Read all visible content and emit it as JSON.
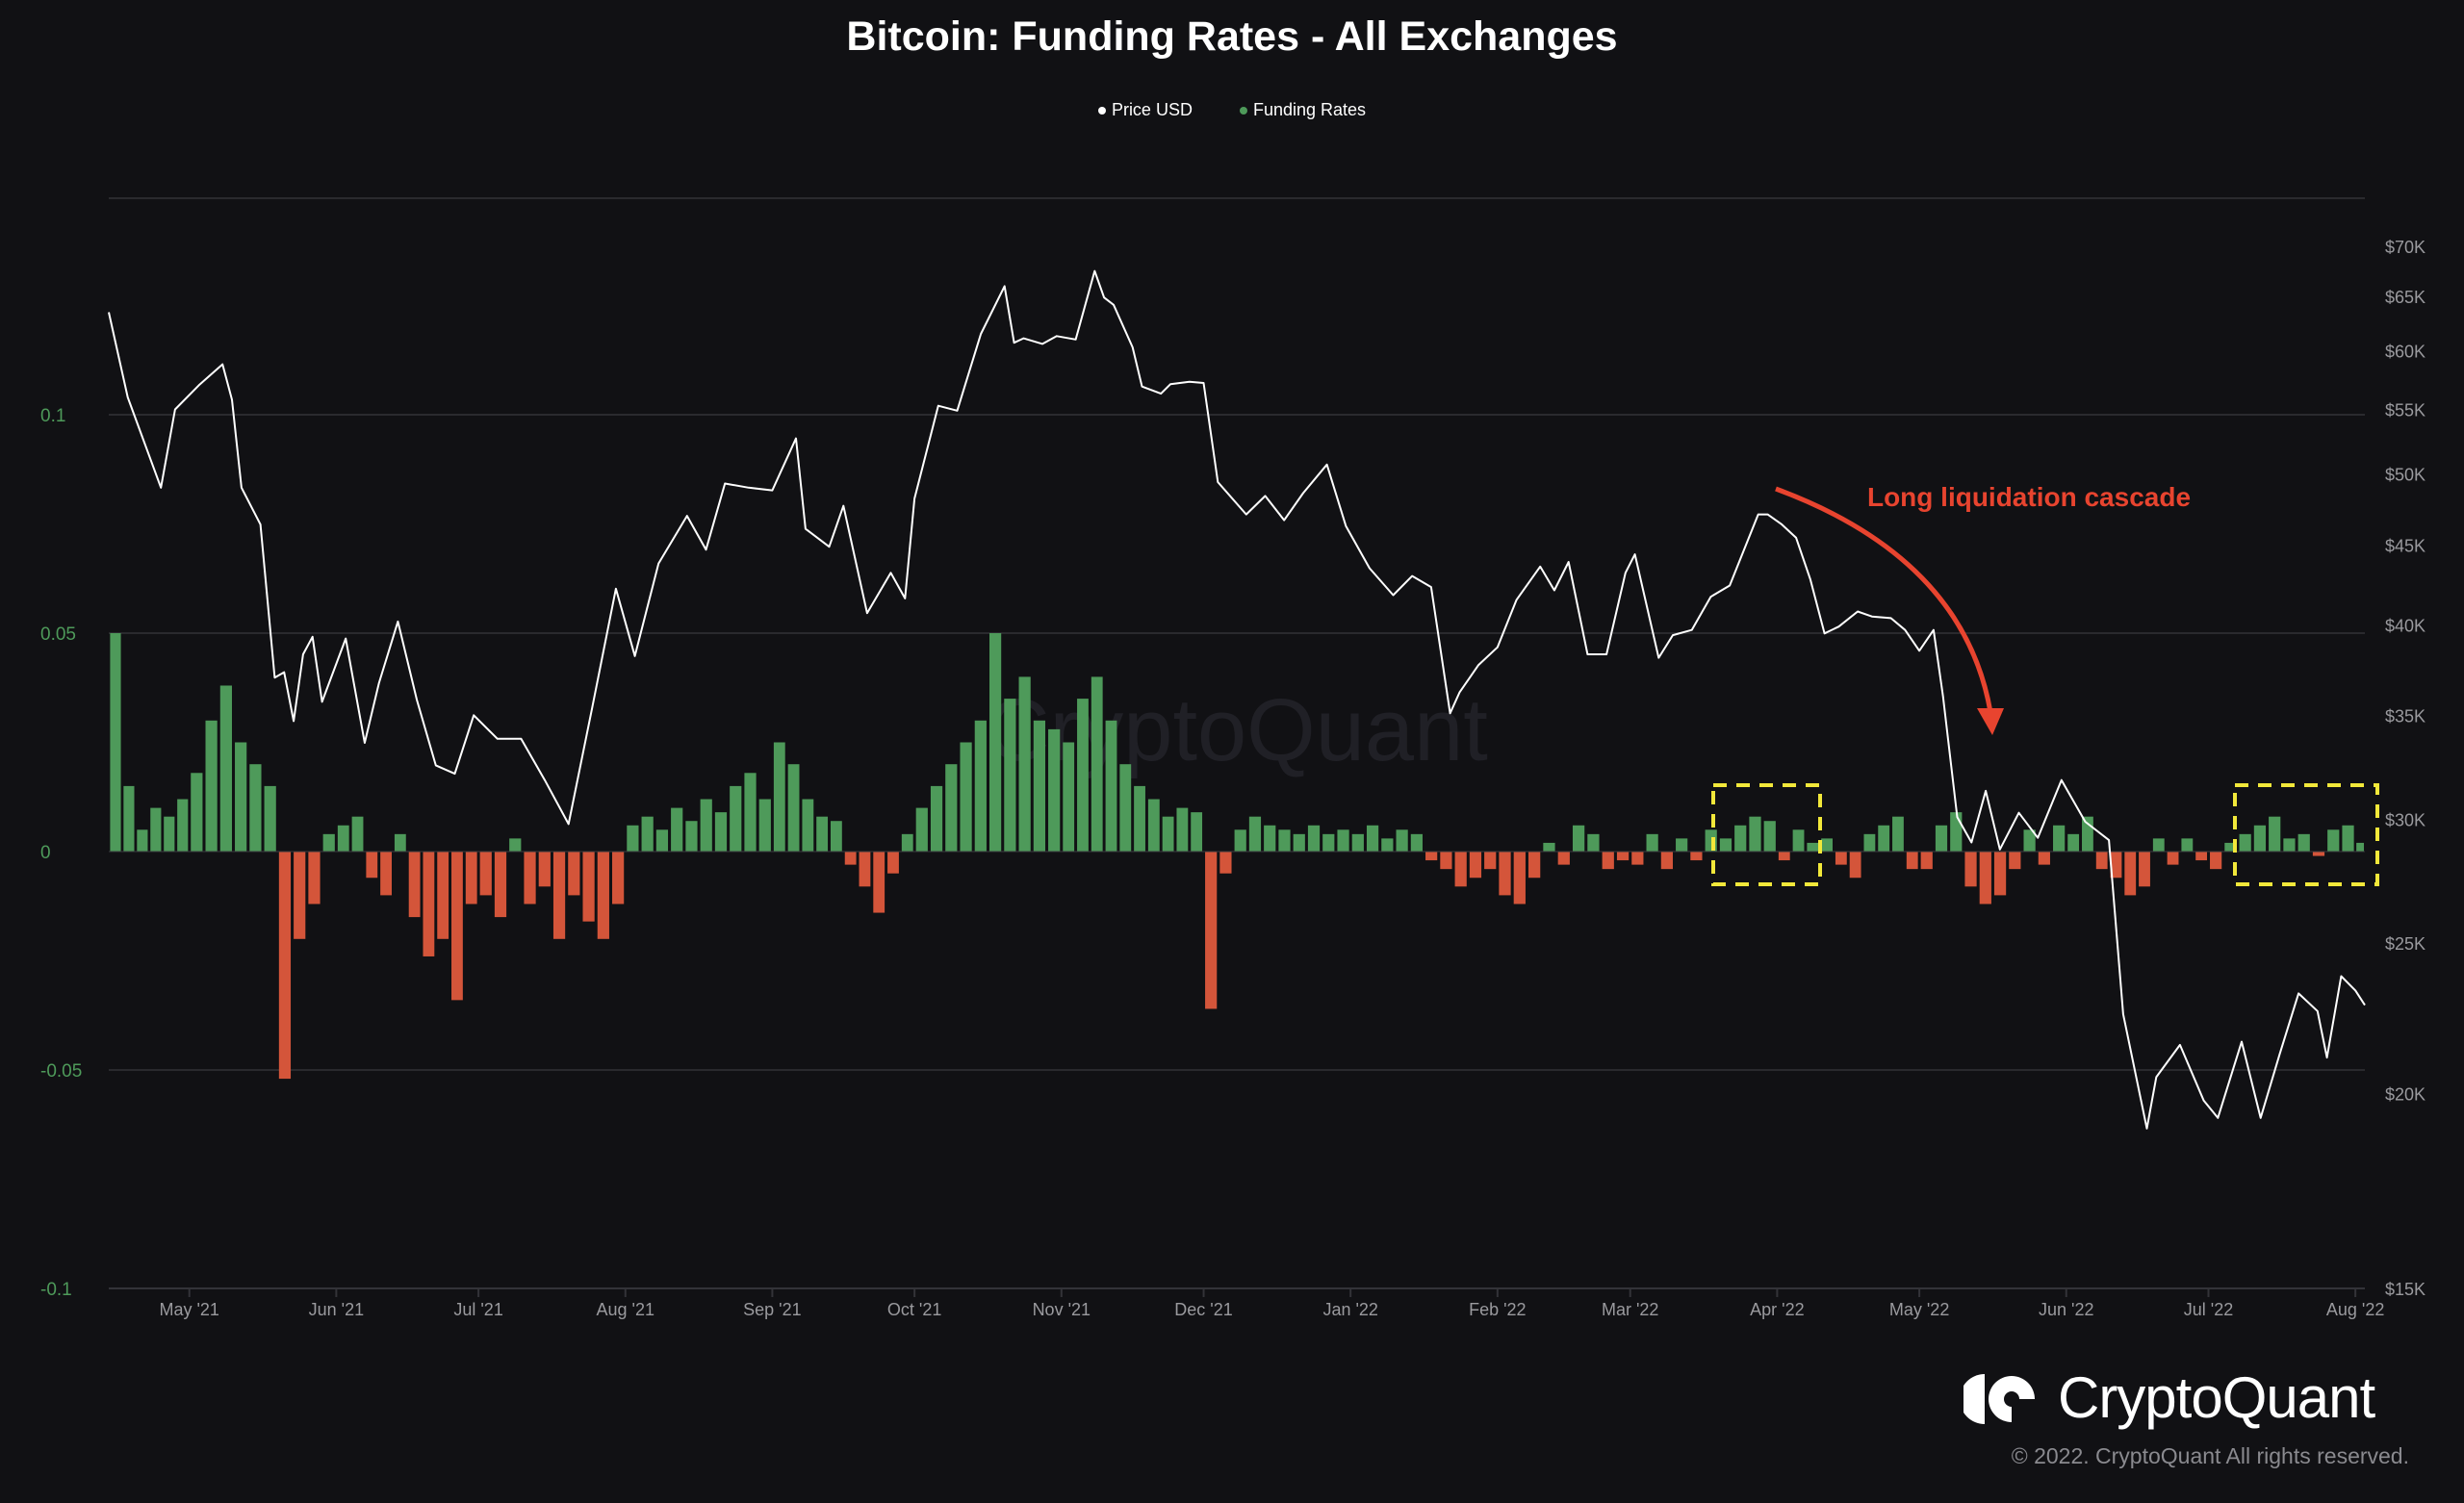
{
  "title": "Bitcoin: Funding Rates - All Exchanges",
  "legend": [
    {
      "label": "Price USD",
      "color": "#ffffff"
    },
    {
      "label": "Funding Rates",
      "color": "#4e9a5a"
    }
  ],
  "watermark": "CryptoQuant",
  "brand": {
    "name": "CryptoQuant",
    "copyright": "© 2022. CryptoQuant All rights reserved."
  },
  "annotation": {
    "text": "Long liquidation cascade",
    "color": "#e8442f",
    "highlight_color": "#f2e83a"
  },
  "chart_data": {
    "type": "bar+line",
    "title": "Bitcoin: Funding Rates - All Exchanges",
    "x_range": [
      "2021-04-14",
      "2022-08-03"
    ],
    "x_ticks": [
      {
        "date": "2021-05-01",
        "label": "May '21"
      },
      {
        "date": "2021-06-01",
        "label": "Jun '21"
      },
      {
        "date": "2021-07-01",
        "label": "Jul '21"
      },
      {
        "date": "2021-08-01",
        "label": "Aug '21"
      },
      {
        "date": "2021-09-01",
        "label": "Sep '21"
      },
      {
        "date": "2021-10-01",
        "label": "Oct '21"
      },
      {
        "date": "2021-11-01",
        "label": "Nov '21"
      },
      {
        "date": "2021-12-01",
        "label": "Dec '21"
      },
      {
        "date": "2022-01-01",
        "label": "Jan '22"
      },
      {
        "date": "2022-02-01",
        "label": "Feb '22"
      },
      {
        "date": "2022-03-01",
        "label": "Mar '22"
      },
      {
        "date": "2022-04-01",
        "label": "Apr '22"
      },
      {
        "date": "2022-05-01",
        "label": "May '22"
      },
      {
        "date": "2022-06-01",
        "label": "Jun '22"
      },
      {
        "date": "2022-07-01",
        "label": "Jul '22"
      },
      {
        "date": "2022-08-01",
        "label": "Aug '22"
      }
    ],
    "left_axis": {
      "range": [
        -0.1,
        0.15
      ],
      "ticks": [
        {
          "value": 0.1,
          "label": "0.1"
        },
        {
          "value": 0.05,
          "label": "0.05"
        },
        {
          "value": 0,
          "label": "0"
        },
        {
          "value": -0.05,
          "label": "-0.05"
        },
        {
          "value": -0.1,
          "label": "-0.1"
        }
      ],
      "color": "#4e9a5a"
    },
    "right_axis": {
      "scale": "log",
      "range": [
        15000,
        70000
      ],
      "ticks": [
        {
          "value": 70000,
          "label": "$70K"
        },
        {
          "value": 65000,
          "label": "$65K"
        },
        {
          "value": 60000,
          "label": "$60K"
        },
        {
          "value": 55000,
          "label": "$55K"
        },
        {
          "value": 50000,
          "label": "$50K"
        },
        {
          "value": 45000,
          "label": "$45K"
        },
        {
          "value": 40000,
          "label": "$40K"
        },
        {
          "value": 35000,
          "label": "$35K"
        },
        {
          "value": 30000,
          "label": "$30K"
        },
        {
          "value": 25000,
          "label": "$25K"
        },
        {
          "value": 20000,
          "label": "$20K"
        },
        {
          "value": 15000,
          "label": "$15K"
        }
      ]
    },
    "grid": true,
    "legend_position": "top-center",
    "series": [
      {
        "name": "Funding Rates",
        "type": "bar",
        "positive_color": "#4e9a5a",
        "negative_color": "#d4553a",
        "values_by_month": {
          "2021-04": [
            0.05,
            0.015,
            0.005,
            0.01,
            0.008,
            0.012
          ],
          "2021-05": [
            0.018,
            0.03,
            0.038,
            0.025,
            0.02,
            0.015,
            -0.052,
            -0.02,
            -0.012,
            0.004
          ],
          "2021-06": [
            0.006,
            0.008,
            -0.006,
            -0.01,
            0.004,
            -0.015,
            -0.024,
            -0.02,
            -0.034,
            -0.012
          ],
          "2021-07": [
            -0.01,
            -0.015,
            0.003,
            -0.012,
            -0.008,
            -0.02,
            -0.01,
            -0.016,
            -0.02,
            -0.012
          ],
          "2021-08": [
            0.006,
            0.008,
            0.005,
            0.01,
            0.007,
            0.012,
            0.009,
            0.015,
            0.018,
            0.012
          ],
          "2021-09": [
            0.025,
            0.02,
            0.012,
            0.008,
            0.007,
            -0.003,
            -0.008,
            -0.014,
            -0.005,
            0.004
          ],
          "2021-10": [
            0.01,
            0.015,
            0.02,
            0.025,
            0.03,
            0.05,
            0.035,
            0.04,
            0.03,
            0.028
          ],
          "2021-11": [
            0.025,
            0.035,
            0.04,
            0.03,
            0.02,
            0.015,
            0.012,
            0.008,
            0.01,
            0.009
          ],
          "2021-12": [
            -0.036,
            -0.005,
            0.005,
            0.008,
            0.006,
            0.005,
            0.004,
            0.006,
            0.004,
            0.005
          ],
          "2022-01": [
            0.004,
            0.006,
            0.003,
            0.005,
            0.004,
            -0.002,
            -0.004,
            -0.008,
            -0.006,
            -0.004
          ],
          "2022-02": [
            -0.01,
            -0.012,
            -0.006,
            0.002,
            -0.003,
            0.006,
            0.004,
            -0.004,
            -0.002
          ],
          "2022-03": [
            -0.003,
            0.004,
            -0.004,
            0.003,
            -0.002,
            0.005,
            0.003,
            0.006,
            0.008,
            0.007
          ],
          "2022-04": [
            -0.002,
            0.005,
            0.002,
            0.003,
            -0.003,
            -0.006,
            0.004,
            0.006,
            0.008,
            -0.004
          ],
          "2022-05": [
            -0.004,
            0.006,
            0.009,
            -0.008,
            -0.012,
            -0.01,
            -0.004,
            0.005,
            -0.003,
            0.006
          ],
          "2022-06": [
            0.004,
            0.008,
            -0.004,
            -0.006,
            -0.01,
            -0.008,
            0.003,
            -0.003,
            0.003,
            -0.002
          ],
          "2022-07": [
            -0.004,
            0.002,
            0.004,
            0.006,
            0.008,
            0.003,
            0.004,
            -0.001,
            0.005,
            0.006
          ],
          "2022-08": [
            0.002
          ]
        }
      },
      {
        "name": "Price USD",
        "type": "line",
        "color": "#ffffff",
        "points": [
          [
            "2021-04-14",
            63500
          ],
          [
            "2021-04-18",
            56000
          ],
          [
            "2021-04-25",
            49000
          ],
          [
            "2021-04-28",
            55000
          ],
          [
            "2021-05-03",
            57000
          ],
          [
            "2021-05-08",
            58800
          ],
          [
            "2021-05-10",
            55800
          ],
          [
            "2021-05-12",
            49000
          ],
          [
            "2021-05-16",
            46400
          ],
          [
            "2021-05-19",
            37000
          ],
          [
            "2021-05-21",
            37300
          ],
          [
            "2021-05-23",
            34700
          ],
          [
            "2021-05-25",
            38300
          ],
          [
            "2021-05-27",
            39300
          ],
          [
            "2021-05-29",
            35700
          ],
          [
            "2021-06-03",
            39200
          ],
          [
            "2021-06-07",
            33600
          ],
          [
            "2021-06-10",
            36700
          ],
          [
            "2021-06-14",
            40200
          ],
          [
            "2021-06-18",
            35800
          ],
          [
            "2021-06-22",
            32500
          ],
          [
            "2021-06-26",
            32100
          ],
          [
            "2021-06-30",
            35000
          ],
          [
            "2021-07-05",
            33800
          ],
          [
            "2021-07-10",
            33800
          ],
          [
            "2021-07-15",
            31800
          ],
          [
            "2021-07-20",
            29800
          ],
          [
            "2021-07-25",
            35400
          ],
          [
            "2021-07-30",
            42200
          ],
          [
            "2021-08-03",
            38200
          ],
          [
            "2021-08-08",
            43800
          ],
          [
            "2021-08-14",
            47000
          ],
          [
            "2021-08-18",
            44700
          ],
          [
            "2021-08-22",
            49300
          ],
          [
            "2021-08-27",
            49000
          ],
          [
            "2021-09-01",
            48800
          ],
          [
            "2021-09-06",
            52700
          ],
          [
            "2021-09-08",
            46100
          ],
          [
            "2021-09-13",
            44900
          ],
          [
            "2021-09-16",
            47700
          ],
          [
            "2021-09-21",
            40700
          ],
          [
            "2021-09-26",
            43200
          ],
          [
            "2021-09-29",
            41600
          ],
          [
            "2021-10-01",
            48200
          ],
          [
            "2021-10-06",
            55300
          ],
          [
            "2021-10-10",
            54900
          ],
          [
            "2021-10-15",
            61500
          ],
          [
            "2021-10-20",
            66000
          ],
          [
            "2021-10-22",
            60700
          ],
          [
            "2021-10-24",
            61100
          ],
          [
            "2021-10-28",
            60600
          ],
          [
            "2021-10-31",
            61300
          ],
          [
            "2021-11-04",
            61000
          ],
          [
            "2021-11-08",
            67500
          ],
          [
            "2021-11-10",
            64900
          ],
          [
            "2021-11-12",
            64200
          ],
          [
            "2021-11-16",
            60300
          ],
          [
            "2021-11-18",
            56900
          ],
          [
            "2021-11-22",
            56300
          ],
          [
            "2021-11-24",
            57100
          ],
          [
            "2021-11-28",
            57300
          ],
          [
            "2021-12-01",
            57200
          ],
          [
            "2021-12-04",
            49400
          ],
          [
            "2021-12-10",
            47100
          ],
          [
            "2021-12-14",
            48400
          ],
          [
            "2021-12-18",
            46700
          ],
          [
            "2021-12-22",
            48600
          ],
          [
            "2021-12-27",
            50700
          ],
          [
            "2021-12-31",
            46300
          ],
          [
            "2022-01-05",
            43500
          ],
          [
            "2022-01-10",
            41800
          ],
          [
            "2022-01-14",
            43000
          ],
          [
            "2022-01-18",
            42300
          ],
          [
            "2022-01-22",
            35100
          ],
          [
            "2022-01-24",
            36200
          ],
          [
            "2022-01-28",
            37700
          ],
          [
            "2022-02-01",
            38700
          ],
          [
            "2022-02-05",
            41500
          ],
          [
            "2022-02-10",
            43600
          ],
          [
            "2022-02-13",
            42100
          ],
          [
            "2022-02-16",
            43900
          ],
          [
            "2022-02-20",
            38300
          ],
          [
            "2022-02-24",
            38300
          ],
          [
            "2022-02-28",
            43200
          ],
          [
            "2022-03-02",
            44400
          ],
          [
            "2022-03-07",
            38100
          ],
          [
            "2022-03-10",
            39400
          ],
          [
            "2022-03-14",
            39700
          ],
          [
            "2022-03-18",
            41700
          ],
          [
            "2022-03-22",
            42400
          ],
          [
            "2022-03-28",
            47100
          ],
          [
            "2022-03-30",
            47100
          ],
          [
            "2022-04-02",
            46400
          ],
          [
            "2022-04-05",
            45500
          ],
          [
            "2022-04-08",
            42800
          ],
          [
            "2022-04-11",
            39500
          ],
          [
            "2022-04-14",
            39900
          ],
          [
            "2022-04-18",
            40800
          ],
          [
            "2022-04-21",
            40500
          ],
          [
            "2022-04-25",
            40400
          ],
          [
            "2022-04-28",
            39700
          ],
          [
            "2022-05-01",
            38500
          ],
          [
            "2022-05-04",
            39700
          ],
          [
            "2022-05-06",
            36000
          ],
          [
            "2022-05-09",
            30100
          ],
          [
            "2022-05-12",
            29000
          ],
          [
            "2022-05-15",
            31300
          ],
          [
            "2022-05-18",
            28700
          ],
          [
            "2022-05-22",
            30300
          ],
          [
            "2022-05-26",
            29200
          ],
          [
            "2022-05-31",
            31800
          ],
          [
            "2022-06-05",
            29900
          ],
          [
            "2022-06-10",
            29100
          ],
          [
            "2022-06-13",
            22500
          ],
          [
            "2022-06-18",
            19000
          ],
          [
            "2022-06-20",
            20500
          ],
          [
            "2022-06-25",
            21500
          ],
          [
            "2022-06-30",
            19800
          ],
          [
            "2022-07-03",
            19300
          ],
          [
            "2022-07-08",
            21600
          ],
          [
            "2022-07-12",
            19300
          ],
          [
            "2022-07-16",
            21200
          ],
          [
            "2022-07-20",
            23200
          ],
          [
            "2022-07-24",
            22600
          ],
          [
            "2022-07-26",
            21100
          ],
          [
            "2022-07-29",
            23800
          ],
          [
            "2022-08-01",
            23300
          ],
          [
            "2022-08-03",
            22800
          ]
        ]
      }
    ]
  }
}
